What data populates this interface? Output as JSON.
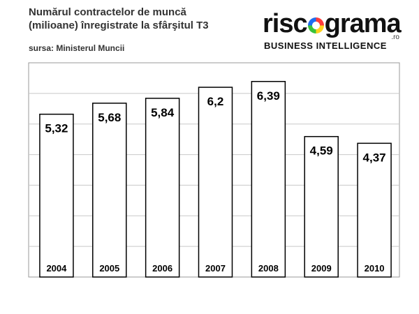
{
  "chart_data": {
    "type": "bar",
    "title": "Numărul contractelor de muncă (milioane) înregistrate la sfârşitul T3",
    "title_lines": [
      "Numărul contractelor de muncă",
      "(milioane) înregistrate la sfârşitul T3"
    ],
    "source": "sursa: Ministerul Muncii",
    "categories": [
      "2004",
      "2005",
      "2006",
      "2007",
      "2008",
      "2009",
      "2010"
    ],
    "values": [
      5.32,
      5.68,
      5.84,
      6.2,
      6.39,
      4.59,
      4.37
    ],
    "value_labels": [
      "5,32",
      "5,68",
      "5,84",
      "6,2",
      "6,39",
      "4,59",
      "4,37"
    ],
    "ylim": [
      0,
      7
    ],
    "grid": true,
    "colors": {
      "bar_fill": "#ffffff",
      "bar_stroke": "#000000",
      "grid": "#c8c8c8",
      "frame": "#999999"
    }
  },
  "logo": {
    "word_start": "risc",
    "word_end": "grama",
    "suffix": ".ro",
    "tagline": "BUSINESS INTELLIGENCE"
  }
}
